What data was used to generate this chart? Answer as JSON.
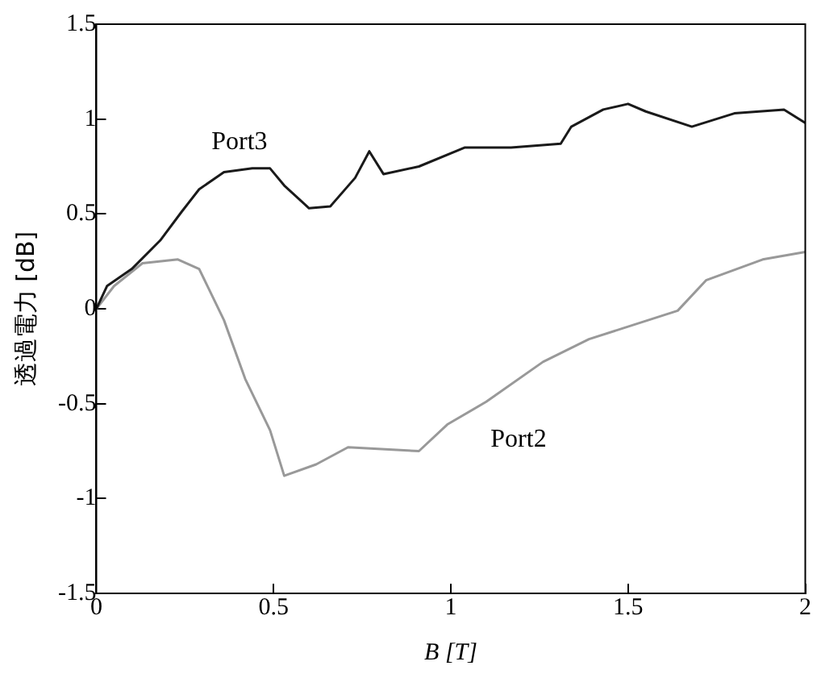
{
  "chart_data": {
    "type": "line",
    "xlabel": "B [T]",
    "ylabel": "透過電力 [dB]",
    "xlim": [
      0,
      2
    ],
    "xticks": [
      0,
      0.5,
      1,
      1.5,
      2
    ],
    "ylim": [
      -1.5,
      1.5
    ],
    "yticks": [
      -1.5,
      -1,
      -0.5,
      0,
      0.5,
      1,
      1.5
    ],
    "grid": false,
    "legend": false,
    "marker": "none",
    "line_style": "solid",
    "series": [
      {
        "name": "Port3",
        "color": "#1a1a1a",
        "x": [
          0,
          0.03,
          0.1,
          0.18,
          0.24,
          0.29,
          0.36,
          0.44,
          0.49,
          0.53,
          0.6,
          0.66,
          0.73,
          0.77,
          0.81,
          0.91,
          1.04,
          1.17,
          1.31,
          1.34,
          1.43,
          1.5,
          1.55,
          1.68,
          1.8,
          1.94,
          2
        ],
        "values": [
          0,
          0.12,
          0.21,
          0.36,
          0.51,
          0.63,
          0.72,
          0.74,
          0.74,
          0.65,
          0.53,
          0.54,
          0.69,
          0.83,
          0.71,
          0.75,
          0.85,
          0.85,
          0.87,
          0.96,
          1.05,
          1.08,
          1.04,
          0.96,
          1.03,
          1.05,
          0.98
        ]
      },
      {
        "name": "Port2",
        "color": "#999999",
        "x": [
          0,
          0.05,
          0.13,
          0.23,
          0.29,
          0.36,
          0.42,
          0.49,
          0.53,
          0.62,
          0.71,
          0.91,
          0.99,
          1.1,
          1.26,
          1.39,
          1.64,
          1.72,
          1.88,
          2
        ],
        "values": [
          0,
          0.12,
          0.24,
          0.26,
          0.21,
          -0.06,
          -0.37,
          -0.64,
          -0.88,
          -0.82,
          -0.73,
          -0.75,
          -0.61,
          -0.49,
          -0.28,
          -0.16,
          -0.01,
          0.15,
          0.26,
          0.3
        ]
      }
    ]
  }
}
